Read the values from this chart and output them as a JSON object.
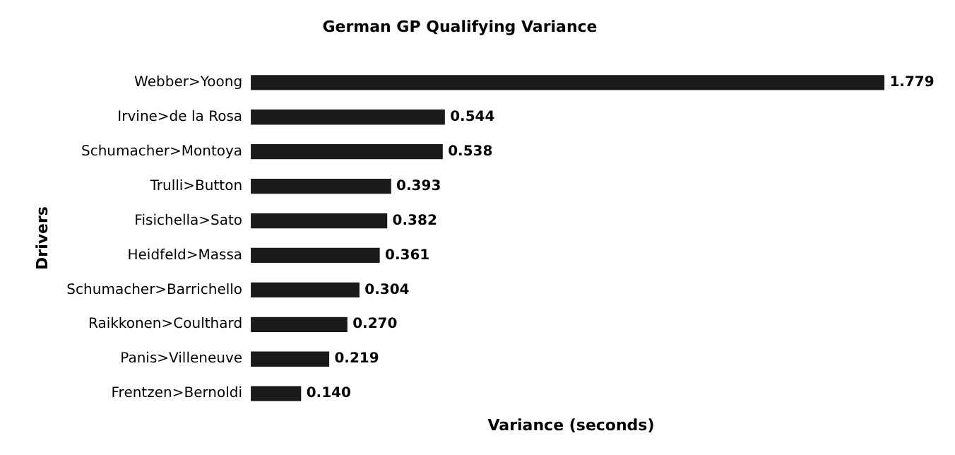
{
  "chart_data": {
    "type": "bar",
    "orientation": "horizontal",
    "title": "German GP Qualifying Variance",
    "xlabel": "Variance (seconds)",
    "ylabel": "Drivers",
    "categories": [
      "Webber>Yoong",
      "Irvine>de la Rosa",
      "Schumacher>Montoya",
      "Trulli>Button",
      "Fisichella>Sato",
      "Heidfeld>Massa",
      "Schumacher>Barrichello",
      "Raikkonen>Coulthard",
      "Panis>Villeneuve",
      "Frentzen>Bernoldi"
    ],
    "values": [
      1.779,
      0.544,
      0.538,
      0.393,
      0.382,
      0.361,
      0.304,
      0.27,
      0.219,
      0.14
    ],
    "value_labels": [
      "1.779",
      "0.544",
      "0.538",
      "0.393",
      "0.382",
      "0.361",
      "0.304",
      "0.270",
      "0.219",
      "0.140"
    ],
    "color": "#1a1a1a",
    "tick_labels": "y",
    "grid": false,
    "legend": false
  }
}
